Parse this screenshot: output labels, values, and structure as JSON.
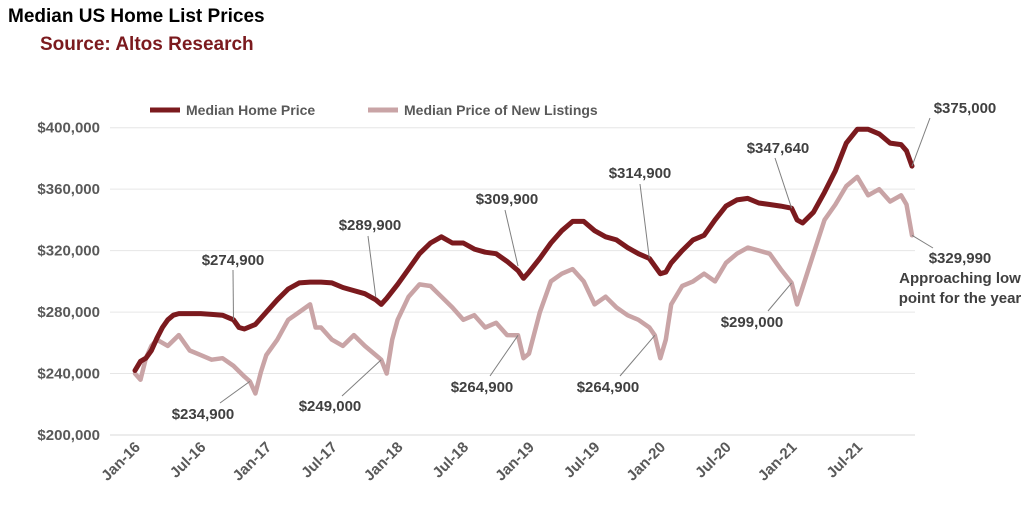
{
  "chart_data": {
    "type": "line",
    "title": "Median US Home List Prices",
    "subtitle": "Source: Altos Research",
    "xlabel": "",
    "ylabel": "",
    "ylim": [
      200000,
      420000
    ],
    "yticks": [
      {
        "value": 200000,
        "label": "$200,000"
      },
      {
        "value": 240000,
        "label": "$240,000"
      },
      {
        "value": 280000,
        "label": "$280,000"
      },
      {
        "value": 320000,
        "label": "$320,000"
      },
      {
        "value": 360000,
        "label": "$360,000"
      },
      {
        "value": 400000,
        "label": "$400,000"
      }
    ],
    "xticks": [
      "Jan-16",
      "Jul-16",
      "Jan-17",
      "Jul-17",
      "Jan-18",
      "Jul-18",
      "Jan-19",
      "Jul-19",
      "Jan-20",
      "Jul-20",
      "Jan-21",
      "Jul-21"
    ],
    "xrange_months": [
      0,
      71
    ],
    "grid": "horizontal",
    "legend_position": "top-left",
    "series": [
      {
        "name": "Median Home Price",
        "color": "#7b1a1e",
        "points": [
          [
            0,
            242000
          ],
          [
            0.5,
            248000
          ],
          [
            1,
            250000
          ],
          [
            1.5,
            255000
          ],
          [
            2,
            263000
          ],
          [
            2.5,
            270000
          ],
          [
            3,
            275000
          ],
          [
            3.5,
            278000
          ],
          [
            4,
            279000
          ],
          [
            5,
            279000
          ],
          [
            6,
            279000
          ],
          [
            7,
            278500
          ],
          [
            8,
            278000
          ],
          [
            9,
            275000
          ],
          [
            9.5,
            270000
          ],
          [
            10,
            269000
          ],
          [
            11,
            272000
          ],
          [
            12,
            280000
          ],
          [
            13,
            288000
          ],
          [
            14,
            295000
          ],
          [
            15,
            299000
          ],
          [
            16,
            299500
          ],
          [
            17,
            299500
          ],
          [
            18,
            299000
          ],
          [
            19,
            296000
          ],
          [
            20,
            294000
          ],
          [
            21,
            292000
          ],
          [
            22,
            288000
          ],
          [
            22.5,
            285000
          ],
          [
            23,
            289000
          ],
          [
            24,
            298000
          ],
          [
            25,
            308000
          ],
          [
            26,
            318000
          ],
          [
            27,
            325000
          ],
          [
            28,
            329000
          ],
          [
            29,
            325000
          ],
          [
            30,
            325000
          ],
          [
            31,
            321000
          ],
          [
            32,
            319000
          ],
          [
            33,
            318000
          ],
          [
            34,
            313000
          ],
          [
            35,
            307000
          ],
          [
            35.5,
            302000
          ],
          [
            36,
            306000
          ],
          [
            37,
            315000
          ],
          [
            38,
            325000
          ],
          [
            39,
            333000
          ],
          [
            40,
            339000
          ],
          [
            41,
            339000
          ],
          [
            42,
            333000
          ],
          [
            43,
            329000
          ],
          [
            44,
            327000
          ],
          [
            45,
            322000
          ],
          [
            46,
            318000
          ],
          [
            47,
            314900
          ],
          [
            48,
            305000
          ],
          [
            48.5,
            306000
          ],
          [
            49,
            312000
          ],
          [
            50,
            320000
          ],
          [
            51,
            327000
          ],
          [
            52,
            330000
          ],
          [
            53,
            340000
          ],
          [
            54,
            349000
          ],
          [
            55,
            353000
          ],
          [
            56,
            354000
          ],
          [
            57,
            351000
          ],
          [
            58,
            350000
          ],
          [
            59,
            349000
          ],
          [
            60,
            347640
          ],
          [
            60.5,
            340000
          ],
          [
            61,
            338000
          ],
          [
            62,
            345000
          ],
          [
            63,
            358000
          ],
          [
            64,
            372000
          ],
          [
            65,
            390000
          ],
          [
            66,
            399000
          ],
          [
            67,
            399000
          ],
          [
            68,
            396000
          ],
          [
            69,
            390000
          ],
          [
            70,
            389000
          ],
          [
            70.5,
            385000
          ],
          [
            71,
            375000
          ]
        ]
      },
      {
        "name": "Median Price of New Listings",
        "color": "#c9a4a6",
        "points": [
          [
            0,
            240000
          ],
          [
            0.5,
            236000
          ],
          [
            1,
            250000
          ],
          [
            1.5,
            258000
          ],
          [
            2,
            262000
          ],
          [
            3,
            258000
          ],
          [
            4,
            265000
          ],
          [
            5,
            255000
          ],
          [
            6,
            252000
          ],
          [
            7,
            249000
          ],
          [
            8,
            250000
          ],
          [
            9,
            245000
          ],
          [
            10,
            238000
          ],
          [
            10.5,
            234900
          ],
          [
            11,
            227000
          ],
          [
            11.5,
            241000
          ],
          [
            12,
            252000
          ],
          [
            13,
            262000
          ],
          [
            14,
            275000
          ],
          [
            15,
            280000
          ],
          [
            16,
            285000
          ],
          [
            16.5,
            270000
          ],
          [
            17,
            270000
          ],
          [
            18,
            262000
          ],
          [
            19,
            258000
          ],
          [
            20,
            265000
          ],
          [
            21,
            258000
          ],
          [
            22,
            252000
          ],
          [
            22.5,
            249000
          ],
          [
            23,
            240000
          ],
          [
            23.5,
            262000
          ],
          [
            24,
            275000
          ],
          [
            25,
            290000
          ],
          [
            26,
            298000
          ],
          [
            27,
            297000
          ],
          [
            28,
            290000
          ],
          [
            29,
            283000
          ],
          [
            30,
            275000
          ],
          [
            31,
            278000
          ],
          [
            32,
            270000
          ],
          [
            33,
            273000
          ],
          [
            34,
            265000
          ],
          [
            35,
            264900
          ],
          [
            35.5,
            250000
          ],
          [
            36,
            253000
          ],
          [
            37,
            280000
          ],
          [
            38,
            300000
          ],
          [
            39,
            305000
          ],
          [
            40,
            308000
          ],
          [
            41,
            300000
          ],
          [
            42,
            285000
          ],
          [
            43,
            290000
          ],
          [
            44,
            283000
          ],
          [
            45,
            278000
          ],
          [
            46,
            275000
          ],
          [
            47,
            270000
          ],
          [
            47.5,
            264900
          ],
          [
            48,
            250000
          ],
          [
            48.5,
            262000
          ],
          [
            49,
            285000
          ],
          [
            50,
            297000
          ],
          [
            51,
            300000
          ],
          [
            52,
            305000
          ],
          [
            53,
            300000
          ],
          [
            54,
            312000
          ],
          [
            55,
            318000
          ],
          [
            56,
            322000
          ],
          [
            57,
            320000
          ],
          [
            58,
            318000
          ],
          [
            59,
            308000
          ],
          [
            60,
            299000
          ],
          [
            60.5,
            285000
          ],
          [
            61,
            296000
          ],
          [
            62,
            318000
          ],
          [
            63,
            340000
          ],
          [
            64,
            350000
          ],
          [
            65,
            362000
          ],
          [
            66,
            368000
          ],
          [
            67,
            356000
          ],
          [
            68,
            360000
          ],
          [
            69,
            352000
          ],
          [
            70,
            356000
          ],
          [
            70.5,
            350000
          ],
          [
            71,
            329990
          ]
        ]
      }
    ],
    "annotations": [
      {
        "label": "$274,900",
        "series": 0,
        "x": 9,
        "y": 274900
      },
      {
        "label": "$289,900",
        "series": 0,
        "x": 22,
        "y": 289900
      },
      {
        "label": "$309,900",
        "series": 0,
        "x": 35,
        "y": 309900
      },
      {
        "label": "$314,900",
        "series": 0,
        "x": 47,
        "y": 314900
      },
      {
        "label": "$347,640",
        "series": 0,
        "x": 60,
        "y": 347640
      },
      {
        "label": "$375,000",
        "series": 0,
        "x": 71,
        "y": 375000
      },
      {
        "label": "$234,900",
        "series": 1,
        "x": 10.5,
        "y": 234900
      },
      {
        "label": "$249,000",
        "series": 1,
        "x": 22.5,
        "y": 249000
      },
      {
        "label": "$264,900",
        "series": 1,
        "x": 35,
        "y": 264900
      },
      {
        "label": "$264,900",
        "series": 1,
        "x": 47.5,
        "y": 264900
      },
      {
        "label": "$299,000",
        "series": 1,
        "x": 60,
        "y": 299000
      },
      {
        "label": "$329,990",
        "series": 1,
        "x": 71,
        "y": 329990
      },
      {
        "label": "Approaching low",
        "series": 1,
        "x": 71,
        "y": 329990
      },
      {
        "label": "point for the year",
        "series": 1,
        "x": 71,
        "y": 329990
      }
    ]
  }
}
